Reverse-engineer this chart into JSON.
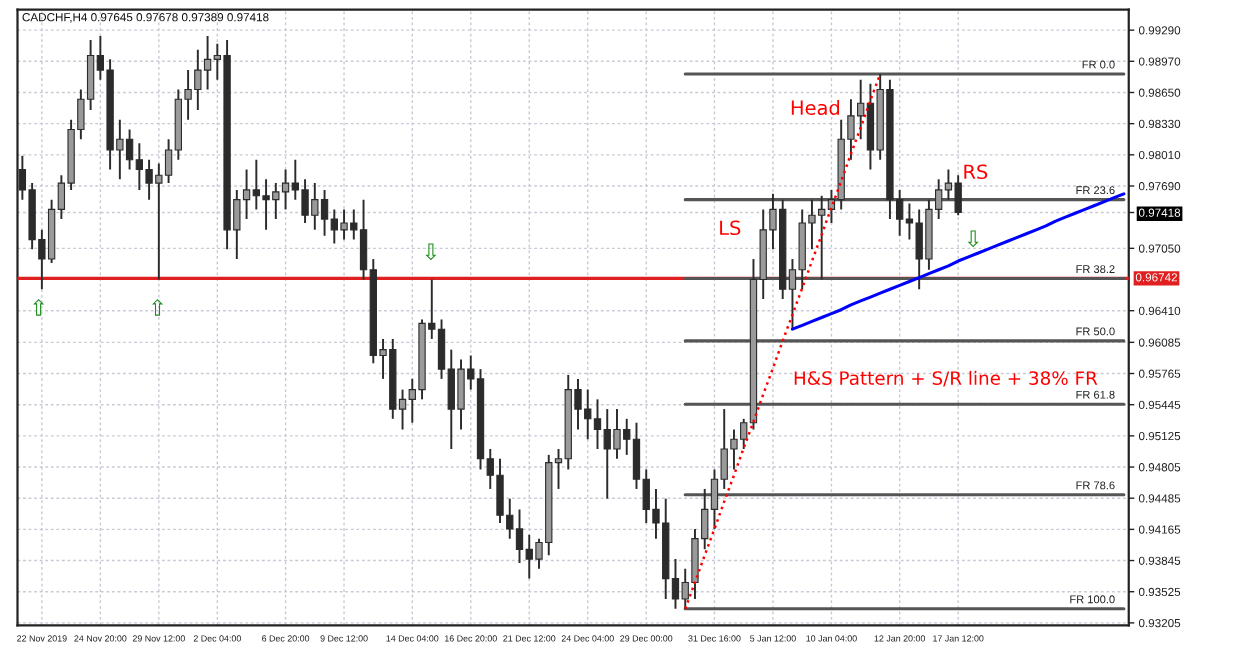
{
  "chart_data": {
    "type": "candlestick",
    "title": "CADCHF,H4 0.97645 0.97678 0.97389 0.97418",
    "categories": [
      null,
      null,
      "22 Nov 2019",
      null,
      null,
      null,
      null,
      null,
      "24 Nov 20:00",
      null,
      null,
      null,
      null,
      null,
      "29 Nov 12:00",
      null,
      null,
      null,
      null,
      null,
      "2 Dec 04:00",
      null,
      null,
      null,
      null,
      null,
      null,
      "6 Dec 20:00",
      null,
      null,
      null,
      null,
      null,
      "9 Dec 12:00",
      null,
      null,
      null,
      null,
      null,
      null,
      "14 Dec 04:00",
      null,
      null,
      null,
      null,
      null,
      "16 Dec 20:00",
      null,
      null,
      null,
      null,
      null,
      "21 Dec 12:00",
      null,
      null,
      null,
      null,
      null,
      "24 Dec 04:00",
      null,
      null,
      null,
      null,
      null,
      "29 Dec 00:00",
      null,
      null,
      null,
      null,
      null,
      null,
      "31 Dec 16:00",
      null,
      null,
      null,
      null,
      null,
      "5 Jan 12:00",
      null,
      null,
      null,
      null,
      null,
      "10 Jan 04:00",
      null,
      null,
      null,
      null,
      null,
      null,
      "12 Jan 20:00",
      null,
      null,
      null,
      null,
      null,
      "17 Jan 12:00",
      null,
      null,
      null,
      null,
      null,
      null,
      null,
      null,
      null,
      null,
      null,
      null,
      null,
      null,
      null,
      null,
      null
    ],
    "ylim": [
      0.9318,
      0.995
    ],
    "yticks": [
      {
        "value": 0.9929,
        "label": "0.99290"
      },
      {
        "value": 0.9897,
        "label": "0.98970"
      },
      {
        "value": 0.9865,
        "label": "0.98650"
      },
      {
        "value": 0.9833,
        "label": "0.98330"
      },
      {
        "value": 0.9801,
        "label": "0.98010"
      },
      {
        "value": 0.9769,
        "label": "0.97690"
      },
      {
        "value": 0.97418,
        "label": "0.97418"
      },
      {
        "value": 0.9705,
        "label": "0.97050"
      },
      {
        "value": 0.9641,
        "label": "0.96410"
      },
      {
        "value": 0.96085,
        "label": "0.96085"
      },
      {
        "value": 0.95765,
        "label": "0.95765"
      },
      {
        "value": 0.95445,
        "label": "0.95445"
      },
      {
        "value": 0.95125,
        "label": "0.95125"
      },
      {
        "value": 0.94805,
        "label": "0.94805"
      },
      {
        "value": 0.94485,
        "label": "0.94485"
      },
      {
        "value": 0.94165,
        "label": "0.94165"
      },
      {
        "value": 0.93845,
        "label": "0.93845"
      },
      {
        "value": 0.93525,
        "label": "0.93525"
      },
      {
        "value": 0.93205,
        "label": "0.93205"
      }
    ],
    "grid": true,
    "series": [
      {
        "color": "#2b2b2b",
        "ohlc": [
          [
            0.9786,
            0.98,
            0.9755,
            0.9765
          ],
          [
            0.9765,
            0.9772,
            0.9704,
            0.9714
          ],
          [
            0.9714,
            0.9724,
            0.9663,
            0.9694
          ],
          [
            0.9694,
            0.9755,
            0.969,
            0.9745
          ],
          [
            0.9745,
            0.978,
            0.9735,
            0.9772
          ],
          [
            0.9772,
            0.9837,
            0.9765,
            0.9827
          ],
          [
            0.9827,
            0.9868,
            0.9817,
            0.9858
          ],
          [
            0.9858,
            0.9919,
            0.9847,
            0.9903
          ],
          [
            0.9903,
            0.9923,
            0.9878,
            0.9888
          ],
          [
            0.9888,
            0.9899,
            0.9786,
            0.9806
          ],
          [
            0.9806,
            0.9837,
            0.9776,
            0.9817
          ],
          [
            0.9817,
            0.9827,
            0.9786,
            0.9796
          ],
          [
            0.9796,
            0.9813,
            0.9765,
            0.9786
          ],
          [
            0.9786,
            0.9796,
            0.9755,
            0.9772
          ],
          [
            0.9772,
            0.9792,
            0.9673,
            0.978
          ],
          [
            0.978,
            0.9817,
            0.9772,
            0.9806
          ],
          [
            0.9806,
            0.9868,
            0.9796,
            0.9858
          ],
          [
            0.9858,
            0.9888,
            0.9837,
            0.9868
          ],
          [
            0.9868,
            0.9909,
            0.9847,
            0.9888
          ],
          [
            0.9888,
            0.9923,
            0.9868,
            0.9899
          ],
          [
            0.9899,
            0.9915,
            0.9878,
            0.9903
          ],
          [
            0.9903,
            0.9919,
            0.9704,
            0.9724
          ],
          [
            0.9724,
            0.9765,
            0.9694,
            0.9755
          ],
          [
            0.9755,
            0.9786,
            0.9735,
            0.9765
          ],
          [
            0.9765,
            0.9796,
            0.9745,
            0.9759
          ],
          [
            0.9759,
            0.9776,
            0.9724,
            0.9755
          ],
          [
            0.9755,
            0.9772,
            0.9735,
            0.9763
          ],
          [
            0.9763,
            0.9786,
            0.9745,
            0.9772
          ],
          [
            0.9772,
            0.9796,
            0.9755,
            0.9765
          ],
          [
            0.9765,
            0.9776,
            0.9731,
            0.9739
          ],
          [
            0.9739,
            0.9772,
            0.9724,
            0.9755
          ],
          [
            0.9755,
            0.9765,
            0.9718,
            0.9735
          ],
          [
            0.9735,
            0.9745,
            0.971,
            0.9724
          ],
          [
            0.9724,
            0.9745,
            0.9714,
            0.9731
          ],
          [
            0.9731,
            0.9745,
            0.9714,
            0.9724
          ],
          [
            0.9724,
            0.9755,
            0.9673,
            0.9683
          ],
          [
            0.9683,
            0.9694,
            0.9587,
            0.9595
          ],
          [
            0.9595,
            0.9612,
            0.9571,
            0.9601
          ],
          [
            0.9601,
            0.9612,
            0.953,
            0.954
          ],
          [
            0.954,
            0.956,
            0.9519,
            0.955
          ],
          [
            0.955,
            0.9571,
            0.9526,
            0.956
          ],
          [
            0.956,
            0.9632,
            0.955,
            0.9628
          ],
          [
            0.9628,
            0.9673,
            0.9612,
            0.9622
          ],
          [
            0.9622,
            0.9632,
            0.9571,
            0.9581
          ],
          [
            0.9581,
            0.9601,
            0.9499,
            0.954
          ],
          [
            0.954,
            0.9591,
            0.9519,
            0.9581
          ],
          [
            0.9581,
            0.9595,
            0.956,
            0.9571
          ],
          [
            0.9571,
            0.9581,
            0.9478,
            0.9489
          ],
          [
            0.9489,
            0.9499,
            0.9458,
            0.9472
          ],
          [
            0.9472,
            0.9489,
            0.9423,
            0.9431
          ],
          [
            0.9431,
            0.9448,
            0.9407,
            0.9417
          ],
          [
            0.9417,
            0.9437,
            0.9382,
            0.9396
          ],
          [
            0.9396,
            0.9411,
            0.9366,
            0.9386
          ],
          [
            0.9386,
            0.9407,
            0.9376,
            0.9403
          ],
          [
            0.9403,
            0.9493,
            0.939,
            0.9485
          ],
          [
            0.9485,
            0.9499,
            0.9458,
            0.9489
          ],
          [
            0.9489,
            0.9575,
            0.9478,
            0.956
          ],
          [
            0.956,
            0.9571,
            0.9519,
            0.954
          ],
          [
            0.954,
            0.956,
            0.9509,
            0.953
          ],
          [
            0.953,
            0.955,
            0.9499,
            0.9519
          ],
          [
            0.9519,
            0.954,
            0.9448,
            0.9499
          ],
          [
            0.9499,
            0.954,
            0.9489,
            0.9519
          ],
          [
            0.9519,
            0.953,
            0.9493,
            0.9509
          ],
          [
            0.9509,
            0.9526,
            0.9458,
            0.9468
          ],
          [
            0.9468,
            0.9478,
            0.9423,
            0.9437
          ],
          [
            0.9437,
            0.9458,
            0.9407,
            0.9423
          ],
          [
            0.9423,
            0.9448,
            0.9345,
            0.9366
          ],
          [
            0.9366,
            0.9386,
            0.9335,
            0.9345
          ],
          [
            0.9345,
            0.9376,
            0.9335,
            0.9362
          ],
          [
            0.9362,
            0.9417,
            0.9345,
            0.9407
          ],
          [
            0.9407,
            0.9458,
            0.9396,
            0.9437
          ],
          [
            0.9437,
            0.9478,
            0.9417,
            0.9468
          ],
          [
            0.9468,
            0.954,
            0.9458,
            0.9499
          ],
          [
            0.9499,
            0.9519,
            0.9478,
            0.9509
          ],
          [
            0.9509,
            0.953,
            0.9499,
            0.9526
          ],
          [
            0.9526,
            0.9694,
            0.9519,
            0.9673
          ],
          [
            0.9673,
            0.9745,
            0.9653,
            0.9724
          ],
          [
            0.9724,
            0.9761,
            0.9704,
            0.9745
          ],
          [
            0.9745,
            0.9755,
            0.9653,
            0.9663
          ],
          [
            0.9663,
            0.9694,
            0.9622,
            0.9683
          ],
          [
            0.9683,
            0.9745,
            0.9663,
            0.9731
          ],
          [
            0.9731,
            0.9755,
            0.9704,
            0.9739
          ],
          [
            0.9739,
            0.9759,
            0.9673,
            0.9745
          ],
          [
            0.9745,
            0.9765,
            0.9731,
            0.9755
          ],
          [
            0.9755,
            0.9837,
            0.9745,
            0.9817
          ],
          [
            0.9817,
            0.9858,
            0.9796,
            0.9841
          ],
          [
            0.9841,
            0.9878,
            0.9817,
            0.9854
          ],
          [
            0.9854,
            0.9874,
            0.9786,
            0.9806
          ],
          [
            0.9806,
            0.9884,
            0.9796,
            0.9868
          ],
          [
            0.9868,
            0.9878,
            0.9735,
            0.9755
          ],
          [
            0.9755,
            0.9765,
            0.9718,
            0.9735
          ],
          [
            0.9735,
            0.9751,
            0.9714,
            0.9731
          ],
          [
            0.9731,
            0.9745,
            0.9663,
            0.9694
          ],
          [
            0.9694,
            0.9755,
            0.9683,
            0.9745
          ],
          [
            0.9745,
            0.9776,
            0.9735,
            0.9765
          ],
          [
            0.9765,
            0.9786,
            0.9755,
            0.9772
          ],
          [
            0.9772,
            0.978,
            0.9739,
            0.97418
          ],
          null,
          null,
          null,
          null,
          null,
          null,
          null,
          null,
          null,
          null,
          null,
          null,
          null,
          null,
          null,
          null,
          null
        ]
      },
      {
        "type": "line",
        "name": "FR 0.0",
        "color": "#555555",
        "values": [
          null,
          null,
          null,
          null,
          null,
          null,
          null,
          null,
          null,
          null,
          null,
          null,
          null,
          null,
          null,
          null,
          null,
          null,
          null,
          null,
          null,
          null,
          null,
          null,
          null,
          null,
          null,
          null,
          null,
          null,
          null,
          null,
          null,
          null,
          null,
          null,
          null,
          null,
          null,
          null,
          null,
          null,
          null,
          null,
          null,
          null,
          null,
          null,
          null,
          null,
          null,
          null,
          null,
          null,
          null,
          null,
          null,
          null,
          null,
          null,
          null,
          null,
          null,
          null,
          null,
          null,
          null,
          null,
          0.9884,
          0.9884,
          0.9884,
          0.9884,
          0.9884,
          0.9884,
          0.9884,
          0.9884,
          0.9884,
          0.9884,
          0.9884,
          0.9884,
          0.9884,
          0.9884,
          0.9884,
          0.9884,
          0.9884,
          0.9884,
          0.9884,
          0.9884,
          0.9884,
          0.9884,
          0.9884,
          0.9884,
          0.9884,
          0.9884,
          0.9884,
          0.9884,
          0.9884,
          0.9884,
          0.9884,
          0.9884,
          0.9884,
          0.9884,
          0.9884,
          0.9884,
          0.9884,
          0.9884,
          0.9884,
          0.9884,
          0.9884,
          0.9884,
          0.9884,
          0.9884,
          0.9884,
          0.9884
        ]
      },
      {
        "type": "line",
        "name": "FR 23.6",
        "color": "#555555",
        "values": [
          null,
          null,
          null,
          null,
          null,
          null,
          null,
          null,
          null,
          null,
          null,
          null,
          null,
          null,
          null,
          null,
          null,
          null,
          null,
          null,
          null,
          null,
          null,
          null,
          null,
          null,
          null,
          null,
          null,
          null,
          null,
          null,
          null,
          null,
          null,
          null,
          null,
          null,
          null,
          null,
          null,
          null,
          null,
          null,
          null,
          null,
          null,
          null,
          null,
          null,
          null,
          null,
          null,
          null,
          null,
          null,
          null,
          null,
          null,
          null,
          null,
          null,
          null,
          null,
          null,
          null,
          null,
          null,
          0.9755,
          0.9755,
          0.9755,
          0.9755,
          0.9755,
          0.9755,
          0.9755,
          0.9755,
          0.9755,
          0.9755,
          0.9755,
          0.9755,
          0.9755,
          0.9755,
          0.9755,
          0.9755,
          0.9755,
          0.9755,
          0.9755,
          0.9755,
          0.9755,
          0.9755,
          0.9755,
          0.9755,
          0.9755,
          0.9755,
          0.9755,
          0.9755,
          0.9755,
          0.9755,
          0.9755,
          0.9755,
          0.9755,
          0.9755,
          0.9755,
          0.9755,
          0.9755,
          0.9755,
          0.9755,
          0.9755,
          0.9755,
          0.9755,
          0.9755,
          0.9755,
          0.9755,
          0.9755
        ]
      },
      {
        "type": "line",
        "name": "FR 38.2",
        "color": "#555555",
        "values": [
          null,
          null,
          null,
          null,
          null,
          null,
          null,
          null,
          null,
          null,
          null,
          null,
          null,
          null,
          null,
          null,
          null,
          null,
          null,
          null,
          null,
          null,
          null,
          null,
          null,
          null,
          null,
          null,
          null,
          null,
          null,
          null,
          null,
          null,
          null,
          null,
          null,
          null,
          null,
          null,
          null,
          null,
          null,
          null,
          null,
          null,
          null,
          null,
          null,
          null,
          null,
          null,
          null,
          null,
          null,
          null,
          null,
          null,
          null,
          null,
          null,
          null,
          null,
          null,
          null,
          null,
          null,
          null,
          0.9674,
          0.9674,
          0.9674,
          0.9674,
          0.9674,
          0.9674,
          0.9674,
          0.9674,
          0.9674,
          0.9674,
          0.9674,
          0.9674,
          0.9674,
          0.9674,
          0.9674,
          0.9674,
          0.9674,
          0.9674,
          0.9674,
          0.9674,
          0.9674,
          0.9674,
          0.9674,
          0.9674,
          0.9674,
          0.9674,
          0.9674,
          0.9674,
          0.9674,
          0.9674,
          0.9674,
          0.9674,
          0.9674,
          0.9674,
          0.9674,
          0.9674,
          0.9674,
          0.9674,
          0.9674,
          0.9674,
          0.9674,
          0.9674,
          0.9674,
          0.9674,
          0.9674,
          0.9674
        ]
      },
      {
        "type": "line",
        "name": "FR 50.0",
        "color": "#555555",
        "values": [
          null,
          null,
          null,
          null,
          null,
          null,
          null,
          null,
          null,
          null,
          null,
          null,
          null,
          null,
          null,
          null,
          null,
          null,
          null,
          null,
          null,
          null,
          null,
          null,
          null,
          null,
          null,
          null,
          null,
          null,
          null,
          null,
          null,
          null,
          null,
          null,
          null,
          null,
          null,
          null,
          null,
          null,
          null,
          null,
          null,
          null,
          null,
          null,
          null,
          null,
          null,
          null,
          null,
          null,
          null,
          null,
          null,
          null,
          null,
          null,
          null,
          null,
          null,
          null,
          null,
          null,
          null,
          null,
          0.961,
          0.961,
          0.961,
          0.961,
          0.961,
          0.961,
          0.961,
          0.961,
          0.961,
          0.961,
          0.961,
          0.961,
          0.961,
          0.961,
          0.961,
          0.961,
          0.961,
          0.961,
          0.961,
          0.961,
          0.961,
          0.961,
          0.961,
          0.961,
          0.961,
          0.961,
          0.961,
          0.961,
          0.961,
          0.961,
          0.961,
          0.961,
          0.961,
          0.961,
          0.961,
          0.961,
          0.961,
          0.961,
          0.961,
          0.961,
          0.961,
          0.961,
          0.961,
          0.961,
          0.961,
          0.961
        ]
      },
      {
        "type": "line",
        "name": "FR 61.8",
        "color": "#555555",
        "values": [
          null,
          null,
          null,
          null,
          null,
          null,
          null,
          null,
          null,
          null,
          null,
          null,
          null,
          null,
          null,
          null,
          null,
          null,
          null,
          null,
          null,
          null,
          null,
          null,
          null,
          null,
          null,
          null,
          null,
          null,
          null,
          null,
          null,
          null,
          null,
          null,
          null,
          null,
          null,
          null,
          null,
          null,
          null,
          null,
          null,
          null,
          null,
          null,
          null,
          null,
          null,
          null,
          null,
          null,
          null,
          null,
          null,
          null,
          null,
          null,
          null,
          null,
          null,
          null,
          null,
          null,
          null,
          null,
          0.9545,
          0.9545,
          0.9545,
          0.9545,
          0.9545,
          0.9545,
          0.9545,
          0.9545,
          0.9545,
          0.9545,
          0.9545,
          0.9545,
          0.9545,
          0.9545,
          0.9545,
          0.9545,
          0.9545,
          0.9545,
          0.9545,
          0.9545,
          0.9545,
          0.9545,
          0.9545,
          0.9545,
          0.9545,
          0.9545,
          0.9545,
          0.9545,
          0.9545,
          0.9545,
          0.9545,
          0.9545,
          0.9545,
          0.9545,
          0.9545,
          0.9545,
          0.9545,
          0.9545,
          0.9545,
          0.9545,
          0.9545,
          0.9545,
          0.9545,
          0.9545,
          0.9545,
          0.9545
        ]
      },
      {
        "type": "line",
        "name": "FR 78.6",
        "color": "#555555",
        "values": [
          null,
          null,
          null,
          null,
          null,
          null,
          null,
          null,
          null,
          null,
          null,
          null,
          null,
          null,
          null,
          null,
          null,
          null,
          null,
          null,
          null,
          null,
          null,
          null,
          null,
          null,
          null,
          null,
          null,
          null,
          null,
          null,
          null,
          null,
          null,
          null,
          null,
          null,
          null,
          null,
          null,
          null,
          null,
          null,
          null,
          null,
          null,
          null,
          null,
          null,
          null,
          null,
          null,
          null,
          null,
          null,
          null,
          null,
          null,
          null,
          null,
          null,
          null,
          null,
          null,
          null,
          null,
          null,
          0.9452,
          0.9452,
          0.9452,
          0.9452,
          0.9452,
          0.9452,
          0.9452,
          0.9452,
          0.9452,
          0.9452,
          0.9452,
          0.9452,
          0.9452,
          0.9452,
          0.9452,
          0.9452,
          0.9452,
          0.9452,
          0.9452,
          0.9452,
          0.9452,
          0.9452,
          0.9452,
          0.9452,
          0.9452,
          0.9452,
          0.9452,
          0.9452,
          0.9452,
          0.9452,
          0.9452,
          0.9452,
          0.9452,
          0.9452,
          0.9452,
          0.9452,
          0.9452,
          0.9452,
          0.9452,
          0.9452,
          0.9452,
          0.9452,
          0.9452,
          0.9452,
          0.9452,
          0.9452
        ]
      },
      {
        "type": "line",
        "name": "FR 100.0",
        "color": "#555555",
        "values": [
          null,
          null,
          null,
          null,
          null,
          null,
          null,
          null,
          null,
          null,
          null,
          null,
          null,
          null,
          null,
          null,
          null,
          null,
          null,
          null,
          null,
          null,
          null,
          null,
          null,
          null,
          null,
          null,
          null,
          null,
          null,
          null,
          null,
          null,
          null,
          null,
          null,
          null,
          null,
          null,
          null,
          null,
          null,
          null,
          null,
          null,
          null,
          null,
          null,
          null,
          null,
          null,
          null,
          null,
          null,
          null,
          null,
          null,
          null,
          null,
          null,
          null,
          null,
          null,
          null,
          null,
          null,
          null,
          0.9335,
          0.9335,
          0.9335,
          0.9335,
          0.9335,
          0.9335,
          0.9335,
          0.9335,
          0.9335,
          0.9335,
          0.9335,
          0.9335,
          0.9335,
          0.9335,
          0.9335,
          0.9335,
          0.9335,
          0.9335,
          0.9335,
          0.9335,
          0.9335,
          0.9335,
          0.9335,
          0.9335,
          0.9335,
          0.9335,
          0.9335,
          0.9335,
          0.9335,
          0.9335,
          0.9335,
          0.9335,
          0.9335,
          0.9335,
          0.9335,
          0.9335,
          0.9335,
          0.9335,
          0.9335,
          0.9335,
          0.9335,
          0.9335,
          0.9335,
          0.9335,
          0.9335,
          0.9335
        ]
      },
      {
        "type": "line",
        "color": "#ff0000",
        "line_style": "dotted",
        "values": [
          null,
          null,
          null,
          null,
          null,
          null,
          null,
          null,
          null,
          null,
          null,
          null,
          null,
          null,
          null,
          null,
          null,
          null,
          null,
          null,
          null,
          null,
          null,
          null,
          null,
          null,
          null,
          null,
          null,
          null,
          null,
          null,
          null,
          null,
          null,
          null,
          null,
          null,
          null,
          null,
          null,
          null,
          null,
          null,
          null,
          null,
          null,
          null,
          null,
          null,
          null,
          null,
          null,
          null,
          null,
          null,
          null,
          null,
          null,
          null,
          null,
          null,
          null,
          null,
          null,
          null,
          null,
          null,
          0.9335,
          0.9362,
          0.939,
          0.9417,
          0.9445,
          0.9472,
          0.95,
          0.9527,
          0.9555,
          0.9582,
          0.961,
          0.9637,
          0.9664,
          0.9692,
          0.9719,
          0.9747,
          0.9774,
          0.9802,
          0.9829,
          0.9857,
          0.9884,
          null,
          null,
          null,
          null,
          null,
          null,
          null,
          null,
          null,
          null,
          null,
          null,
          null,
          null,
          null,
          null,
          null,
          null,
          null,
          null,
          null,
          null,
          null,
          null,
          null
        ]
      },
      {
        "type": "line",
        "color": "#0000ff",
        "values": [
          null,
          null,
          null,
          null,
          null,
          null,
          null,
          null,
          null,
          null,
          null,
          null,
          null,
          null,
          null,
          null,
          null,
          null,
          null,
          null,
          null,
          null,
          null,
          null,
          null,
          null,
          null,
          null,
          null,
          null,
          null,
          null,
          null,
          null,
          null,
          null,
          null,
          null,
          null,
          null,
          null,
          null,
          null,
          null,
          null,
          null,
          null,
          null,
          null,
          null,
          null,
          null,
          null,
          null,
          null,
          null,
          null,
          null,
          null,
          null,
          null,
          null,
          null,
          null,
          null,
          null,
          null,
          null,
          null,
          null,
          null,
          null,
          null,
          null,
          null,
          null,
          null,
          null,
          null,
          0.9622,
          0.9626,
          0.963,
          0.9634,
          0.9638,
          0.9642,
          0.9647,
          0.9651,
          0.9655,
          0.9659,
          0.9663,
          0.9667,
          0.9671,
          0.9675,
          0.9679,
          0.9683,
          0.9687,
          0.9692,
          0.9696,
          0.97,
          0.9704,
          0.9708,
          0.9712,
          0.9716,
          0.972,
          0.9724,
          0.9728,
          0.9733,
          0.9737,
          0.9741,
          0.9745,
          0.9749,
          0.9753,
          0.9757,
          0.9761
        ]
      }
    ],
    "ref_lines": [
      {
        "axis": "y",
        "value": 0.96742,
        "label": "0.96742",
        "color": "#e02020"
      }
    ],
    "annotations": [
      "Head",
      "RS",
      "LS",
      "H&S Pattern + S/R line + 38% FR",
      "⇧",
      "⇧",
      "⇩",
      "⇩"
    ]
  }
}
